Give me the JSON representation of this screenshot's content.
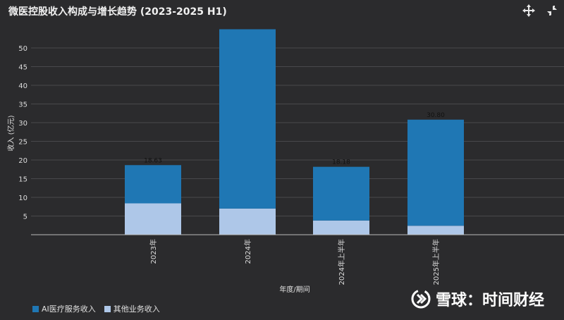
{
  "header": {
    "title": "微医控股收入构成与增长趋势 (2023-2025 H1)",
    "expand_icon": "expand-arrows-icon",
    "collapse_icon": "collapse-arrows-icon"
  },
  "colors": {
    "background": "#2b2b2d",
    "grid": "#48484b",
    "series_ai": "#1f77b4",
    "series_other": "#aec7e8",
    "text": "#e6e6e6"
  },
  "watermark": {
    "text": "雪球：时间财经",
    "logo_icon": "snowball-logo-icon"
  },
  "chart_data": {
    "type": "bar",
    "stacked": true,
    "categories": [
      "2023年",
      "2024年",
      "2024年上半年",
      "2025年上半年"
    ],
    "series": [
      {
        "name": "其他业务收入",
        "color": "#aec7e8",
        "values": [
          8.4,
          7.0,
          3.8,
          2.4
        ]
      },
      {
        "name": "AI医疗服务收入",
        "color": "#1f77b4",
        "values": [
          10.23,
          48.0,
          14.38,
          28.4
        ]
      }
    ],
    "totals": [
      "18.63",
      "",
      "18.18",
      "30.80"
    ],
    "xlabel": "年度/期间",
    "ylabel": "收入 (亿元)",
    "ylim": [
      0,
      55
    ],
    "yticks": [
      5,
      10,
      15,
      20,
      25,
      30,
      35,
      40,
      45,
      50
    ],
    "grid": true,
    "legend_position": "bottom-left"
  }
}
